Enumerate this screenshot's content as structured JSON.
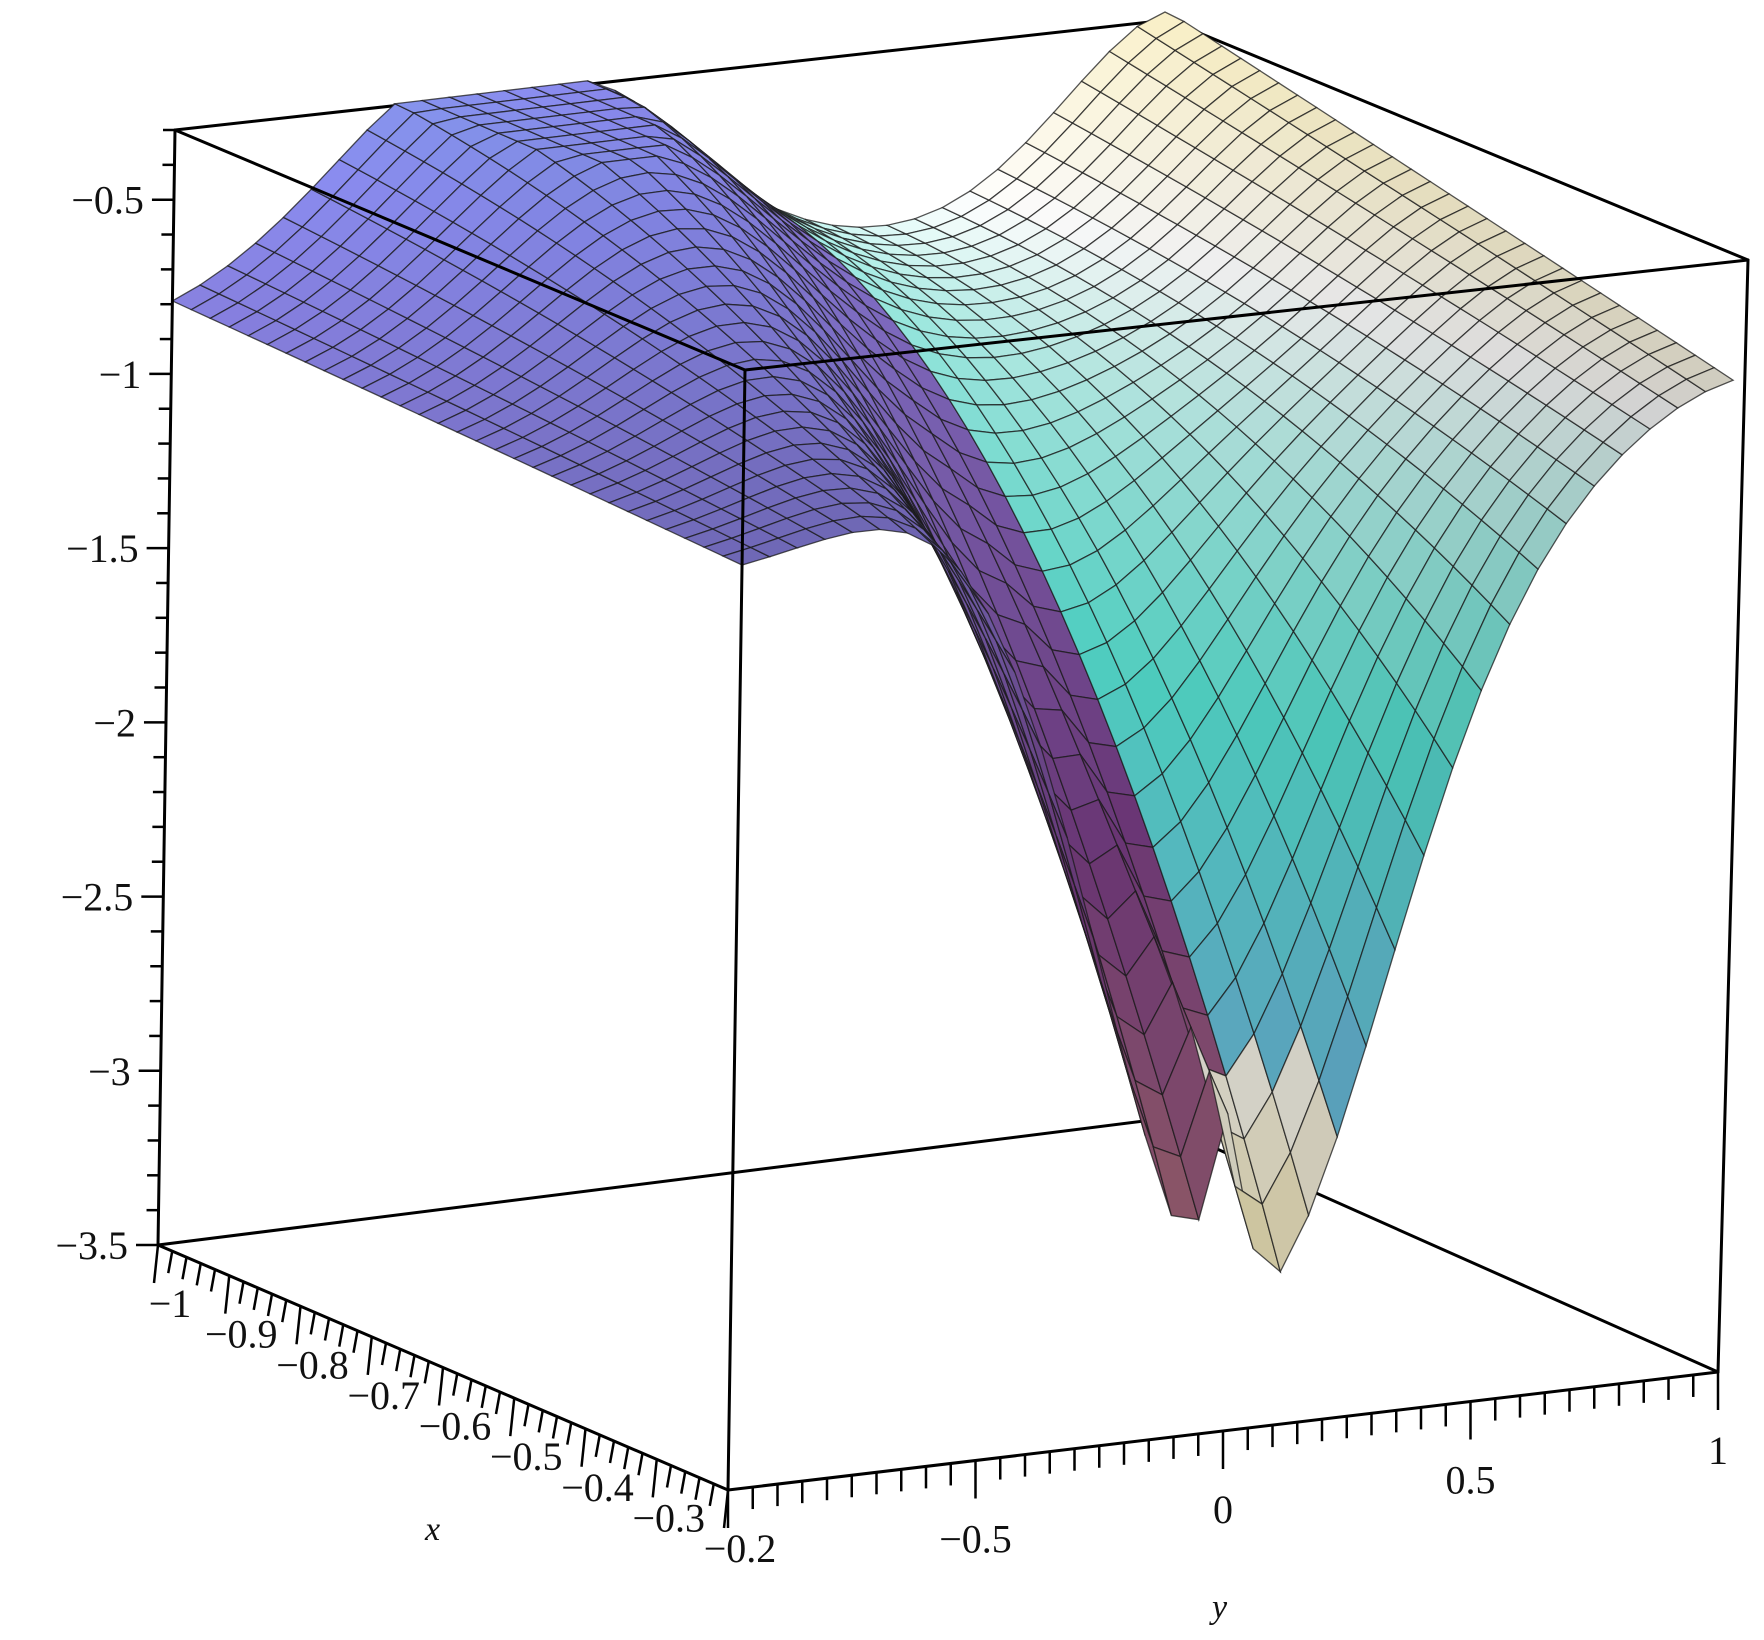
{
  "chart_data": {
    "type": "surface3d",
    "title": "",
    "xlabel": "x",
    "ylabel": "y",
    "zlabel": "",
    "x_range": [
      -1,
      -0.2
    ],
    "y_range": [
      -1,
      1
    ],
    "z_range": [
      -3.5,
      -0.3
    ],
    "x_ticks": [
      -1,
      -0.9,
      -0.8,
      -0.7,
      -0.6,
      -0.5,
      -0.4,
      -0.3,
      -0.2
    ],
    "x_tick_labels": [
      "−1",
      "−0.9",
      "−0.8",
      "−0.7",
      "−0.6",
      "−0.5",
      "−0.4",
      "−0.3",
      "−0.2"
    ],
    "y_ticks": [
      -0.5,
      0,
      0.5,
      1
    ],
    "y_tick_labels": [
      "−0.5",
      "0",
      "0.5",
      "1"
    ],
    "z_ticks": [
      -0.5,
      -1,
      -1.5,
      -2,
      -2.5,
      -3,
      -3.5
    ],
    "z_tick_labels": [
      "−0.5",
      "−1",
      "−1.5",
      "−2",
      "−2.5",
      "−3",
      "−3.5"
    ],
    "surface": {
      "description_values": {
        "z_at_x_-1_y_-1": -0.93,
        "z_at_x_-1_y_-0.4": -0.34,
        "z_at_x_-1_y_1": -0.3,
        "z_at_x_-0.2_y_-0.15": -3.4,
        "z_at_x_-0.2_y_0": -2.9,
        "z_at_x_-0.2_y_0.15": -3.4,
        "z_at_x_-0.2_y_-1": -0.8
      },
      "grid_x_lines": 30,
      "grid_y_lines": 36
    },
    "grid": false,
    "colormap": "maple-default",
    "colors": {
      "low": "#e8a070",
      "mid_purple": "#7a3e86",
      "high_blue": "#8a8cf0",
      "cyan": "#58e8d8",
      "yellow": "#f4e08c",
      "white": "#ffffff"
    }
  }
}
